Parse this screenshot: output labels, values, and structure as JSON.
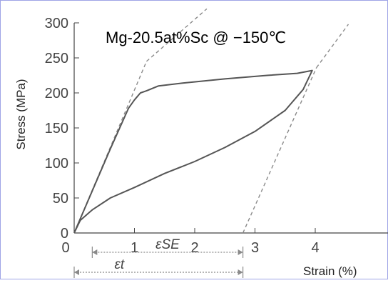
{
  "chart_data": {
    "type": "line",
    "title": "Mg-20.5at%Sc @ −150℃",
    "xlabel": "Strain (%)",
    "ylabel": "Stress (MPa)",
    "xlim": [
      0,
      5
    ],
    "ylim": [
      0,
      300
    ],
    "xticks": [
      "0",
      "1",
      "2",
      "3",
      "4"
    ],
    "yticks": [
      "0",
      "50",
      "100",
      "150",
      "200",
      "250",
      "300"
    ],
    "grid": false,
    "colors": {
      "curve": "#555555",
      "dashed": "#8a8a8a",
      "axis": "#444444",
      "border": "#9fa4e6"
    },
    "series": [
      {
        "x": [
          0,
          0.3,
          0.6,
          0.9,
          1.0,
          1.1,
          1.2,
          1.4,
          1.8,
          2.5,
          3.2,
          3.7,
          3.95,
          3.8,
          3.5,
          3.0,
          2.5,
          2.0,
          1.5,
          1.0,
          0.6,
          0.3,
          0.1,
          0
        ],
        "y": [
          0,
          60,
          120,
          178,
          190,
          200,
          203,
          210,
          214,
          220,
          225,
          228,
          232,
          205,
          175,
          145,
          122,
          102,
          85,
          65,
          50,
          33,
          18,
          0
        ]
      }
    ],
    "annotations": [
      {
        "type": "dashed-line",
        "x": [
          0,
          1.2
        ],
        "y": [
          0,
          245
        ]
      },
      {
        "type": "dashed-line",
        "x": [
          1.2,
          2.2
        ],
        "y": [
          245,
          320
        ]
      },
      {
        "type": "dashed-line",
        "x": [
          2.8,
          4.02
        ],
        "y": [
          0,
          236
        ]
      },
      {
        "type": "dashed-line",
        "x": [
          4.02,
          4.55
        ],
        "y": [
          236,
          298
        ]
      },
      {
        "type": "span-arrow",
        "text": "εSE",
        "x": [
          0.3,
          2.8
        ]
      },
      {
        "type": "span-arrow",
        "text": "εt",
        "x": [
          0,
          2.8
        ]
      }
    ]
  }
}
